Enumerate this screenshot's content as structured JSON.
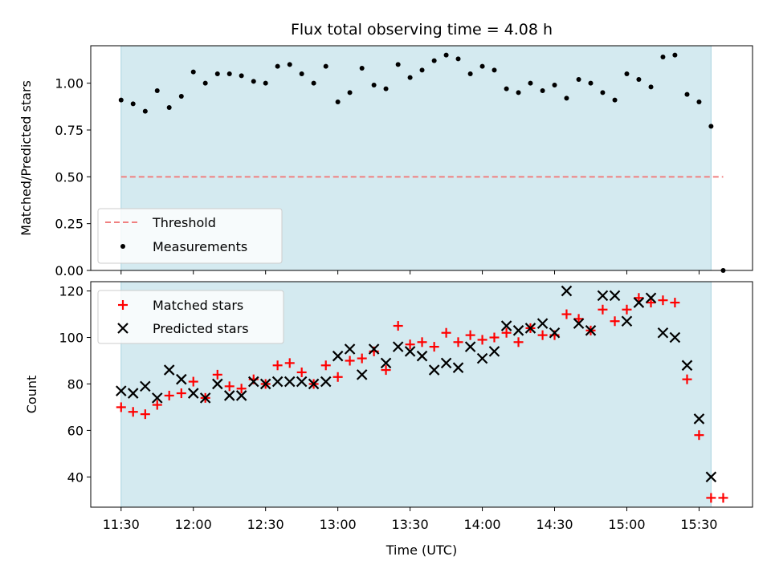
{
  "chart_data": [
    {
      "type": "scatter",
      "title": "Flux total observing time = 4.08 h",
      "ylabel": "Matched/Predicted stars",
      "xlabel": "",
      "ylim": [
        0,
        1.2
      ],
      "yticks": [
        "0.00",
        "0.25",
        "0.50",
        "0.75",
        "1.00"
      ],
      "ytick_values": [
        0,
        0.25,
        0.5,
        0.75,
        1.0
      ],
      "grid": false,
      "legend_position": "lower-left",
      "observing_window_hours": [
        11.5,
        15.583
      ],
      "threshold": {
        "name": "Threshold",
        "value": 0.5,
        "x_range": [
          11.5,
          15.667
        ],
        "color": "#f08080"
      },
      "series": [
        {
          "name": "Measurements",
          "color": "#000000",
          "x": [
            11.5,
            11.583,
            11.667,
            11.75,
            11.833,
            11.917,
            12.0,
            12.083,
            12.167,
            12.25,
            12.333,
            12.417,
            12.5,
            12.583,
            12.667,
            12.75,
            12.833,
            12.917,
            13.0,
            13.083,
            13.167,
            13.25,
            13.333,
            13.417,
            13.5,
            13.583,
            13.667,
            13.75,
            13.833,
            13.917,
            14.0,
            14.083,
            14.167,
            14.25,
            14.333,
            14.417,
            14.5,
            14.583,
            14.667,
            14.75,
            14.833,
            14.917,
            15.0,
            15.083,
            15.167,
            15.25,
            15.333,
            15.417,
            15.5,
            15.583,
            15.667
          ],
          "values": [
            0.91,
            0.89,
            0.85,
            0.96,
            0.87,
            0.93,
            1.06,
            1.0,
            1.05,
            1.05,
            1.04,
            1.01,
            1.0,
            1.09,
            1.1,
            1.05,
            1.0,
            1.09,
            0.9,
            0.95,
            1.08,
            0.99,
            0.97,
            1.1,
            1.03,
            1.07,
            1.12,
            1.15,
            1.13,
            1.05,
            1.09,
            1.07,
            0.97,
            0.95,
            1.0,
            0.96,
            0.99,
            0.92,
            1.02,
            1.0,
            0.95,
            0.91,
            1.05,
            1.02,
            0.98,
            1.14,
            1.15,
            0.94,
            0.9,
            0.77,
            0.0
          ]
        }
      ]
    },
    {
      "type": "scatter",
      "xlabel": "Time (UTC)",
      "ylabel": "Count",
      "ylim": [
        27,
        124
      ],
      "yticks": [
        "40",
        "60",
        "80",
        "100",
        "120"
      ],
      "ytick_values": [
        40,
        60,
        80,
        100,
        120
      ],
      "grid": false,
      "legend_position": "upper-left",
      "observing_window_hours": [
        11.5,
        15.583
      ],
      "categories": [
        "11:30",
        "12:00",
        "12:30",
        "13:00",
        "13:30",
        "14:00",
        "14:30",
        "15:00",
        "15:30"
      ],
      "xtick_values": [
        11.5,
        12.0,
        12.5,
        13.0,
        13.5,
        14.0,
        14.5,
        15.0,
        15.5
      ],
      "xlim": [
        11.29,
        15.87
      ],
      "series": [
        {
          "name": "Matched stars",
          "color": "#ff0000",
          "marker": "+",
          "x": [
            11.5,
            11.583,
            11.667,
            11.75,
            11.833,
            11.917,
            12.0,
            12.083,
            12.167,
            12.25,
            12.333,
            12.417,
            12.5,
            12.583,
            12.667,
            12.75,
            12.833,
            12.917,
            13.0,
            13.083,
            13.167,
            13.25,
            13.333,
            13.417,
            13.5,
            13.583,
            13.667,
            13.75,
            13.833,
            13.917,
            14.0,
            14.083,
            14.167,
            14.25,
            14.333,
            14.417,
            14.5,
            14.583,
            14.667,
            14.75,
            14.833,
            14.917,
            15.0,
            15.083,
            15.167,
            15.25,
            15.333,
            15.417,
            15.5,
            15.583,
            15.667
          ],
          "values": [
            70,
            68,
            67,
            71,
            75,
            76,
            81,
            74,
            84,
            79,
            78,
            82,
            80,
            88,
            89,
            85,
            80,
            88,
            83,
            90,
            91,
            94,
            86,
            105,
            97,
            98,
            96,
            102,
            98,
            101,
            99,
            100,
            102,
            98,
            104,
            101,
            101,
            110,
            108,
            103,
            112,
            107,
            112,
            117,
            115,
            116,
            115,
            82,
            58,
            31,
            31
          ]
        },
        {
          "name": "Predicted stars",
          "color": "#000000",
          "marker": "x",
          "x": [
            11.5,
            11.583,
            11.667,
            11.75,
            11.833,
            11.917,
            12.0,
            12.083,
            12.167,
            12.25,
            12.333,
            12.417,
            12.5,
            12.583,
            12.667,
            12.75,
            12.833,
            12.917,
            13.0,
            13.083,
            13.167,
            13.25,
            13.333,
            13.417,
            13.5,
            13.583,
            13.667,
            13.75,
            13.833,
            13.917,
            14.0,
            14.083,
            14.167,
            14.25,
            14.333,
            14.417,
            14.5,
            14.583,
            14.667,
            14.75,
            14.833,
            14.917,
            15.0,
            15.083,
            15.167,
            15.25,
            15.333,
            15.417,
            15.5,
            15.583
          ],
          "values": [
            77,
            76,
            79,
            74,
            86,
            82,
            76,
            74,
            80,
            75,
            75,
            81,
            80,
            81,
            81,
            81,
            80,
            81,
            92,
            95,
            84,
            95,
            89,
            96,
            94,
            92,
            86,
            89,
            87,
            96,
            91,
            94,
            105,
            103,
            104,
            106,
            102,
            120,
            106,
            103,
            118,
            118,
            107,
            115,
            117,
            102,
            100,
            88,
            65,
            40
          ]
        }
      ]
    }
  ],
  "colors": {
    "window_fill": "#d4eaf0",
    "window_edge": "#a9d3e0",
    "matched": "#ff0000",
    "predicted": "#000000",
    "threshold": "#f08080"
  }
}
